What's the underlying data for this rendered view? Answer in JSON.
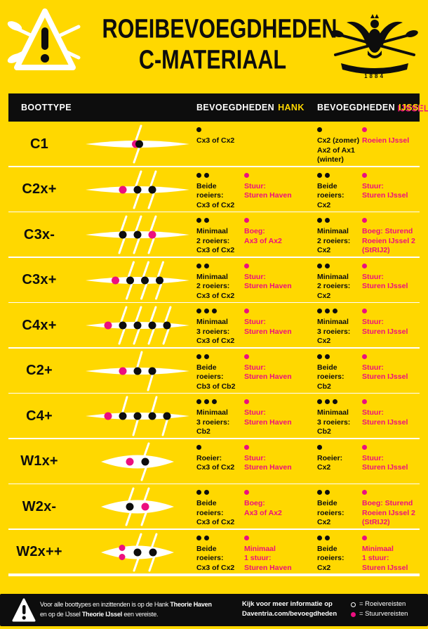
{
  "colors": {
    "yellow": "#FFD800",
    "pink": "#EC0F7F",
    "black": "#0d0d0d",
    "white": "#ffffff"
  },
  "header": {
    "title_line1": "ROEIBEVOEGDHEDEN",
    "title_line2": "C-MATERIAAL",
    "logo_year": "1884"
  },
  "table_header": {
    "boottype": "BOOTTYPE",
    "hank_prefix": "BEVOEGDHEDEN",
    "hank_highlight": "HANK",
    "ijssel_prefix": "BEVOEGDHEDEN",
    "ijssel_highlight": "IJSSEL"
  },
  "rows": [
    {
      "boottype": "C1",
      "boat": {
        "hull": "c",
        "rig": "scull",
        "seats": [
          "dual"
        ],
        "oars_at": [
          0
        ]
      },
      "cells": {
        "hank_roei": {
          "dots": 1,
          "color": "black",
          "lines": [
            "Cx3 of Cx2"
          ]
        },
        "hank_stuur": null,
        "ijssel_roei": {
          "dots": 1,
          "color": "black",
          "lines": [
            "Cx2 (zomer)",
            "Ax2 of Ax1",
            "(winter)"
          ]
        },
        "ijssel_stuur": {
          "dots": 1,
          "color": "pink",
          "lines": [
            "Roeien IJssel"
          ]
        }
      }
    },
    {
      "boottype": "C2x+",
      "boat": {
        "hull": "c",
        "rig": "scull",
        "seats": [
          "pink",
          "black",
          "black"
        ],
        "oars_at": [
          1,
          2
        ]
      },
      "cells": {
        "hank_roei": {
          "dots": 2,
          "color": "black",
          "lines": [
            "Beide",
            "roeiers:",
            "Cx3 of Cx2"
          ]
        },
        "hank_stuur": {
          "dots": 1,
          "color": "pink",
          "lines": [
            "Stuur:",
            "Sturen Haven"
          ]
        },
        "ijssel_roei": {
          "dots": 2,
          "color": "black",
          "lines": [
            "Beide",
            "roeiers:",
            "Cx2"
          ]
        },
        "ijssel_stuur": {
          "dots": 1,
          "color": "pink",
          "lines": [
            "Stuur:",
            "Sturen IJssel"
          ]
        }
      }
    },
    {
      "boottype": "C3x-",
      "boat": {
        "hull": "c",
        "rig": "scull",
        "seats": [
          "black",
          "black",
          "pink"
        ],
        "oars_at": [
          0,
          1,
          2
        ]
      },
      "cells": {
        "hank_roei": {
          "dots": 2,
          "color": "black",
          "lines": [
            "Minimaal",
            "2 roeiers:",
            "Cx3 of Cx2"
          ]
        },
        "hank_stuur": {
          "dots": 1,
          "color": "pink",
          "lines": [
            "Boeg:",
            "Ax3 of Ax2"
          ]
        },
        "ijssel_roei": {
          "dots": 2,
          "color": "black",
          "lines": [
            "Minimaal",
            "2 roeiers:",
            "Cx2"
          ]
        },
        "ijssel_stuur": {
          "dots": 1,
          "color": "pink",
          "lines": [
            "Boeg: Sturend",
            "Roeien IJssel 2",
            "(StRIJ2)"
          ]
        }
      }
    },
    {
      "boottype": "C3x+",
      "boat": {
        "hull": "c",
        "rig": "scull",
        "seats": [
          "pink",
          "black",
          "black",
          "black"
        ],
        "oars_at": [
          1,
          2,
          3
        ]
      },
      "cells": {
        "hank_roei": {
          "dots": 2,
          "color": "black",
          "lines": [
            "Minimaal",
            "2 roeiers:",
            "Cx3 of Cx2"
          ]
        },
        "hank_stuur": {
          "dots": 1,
          "color": "pink",
          "lines": [
            "Stuur:",
            "Sturen Haven"
          ]
        },
        "ijssel_roei": {
          "dots": 2,
          "color": "black",
          "lines": [
            "Minimaal",
            "2 roeiers:",
            "Cx2"
          ]
        },
        "ijssel_stuur": {
          "dots": 1,
          "color": "pink",
          "lines": [
            "Stuur:",
            "Sturen IJssel"
          ]
        }
      }
    },
    {
      "boottype": "C4x+",
      "boat": {
        "hull": "c",
        "rig": "scull",
        "seats": [
          "pink",
          "black",
          "black",
          "black",
          "black"
        ],
        "oars_at": [
          1,
          2,
          3,
          4
        ]
      },
      "cells": {
        "hank_roei": {
          "dots": 3,
          "color": "black",
          "lines": [
            "Minimaal",
            "3 roeiers:",
            "Cx3 of Cx2"
          ]
        },
        "hank_stuur": {
          "dots": 1,
          "color": "pink",
          "lines": [
            "Stuur:",
            "Sturen Haven"
          ]
        },
        "ijssel_roei": {
          "dots": 3,
          "color": "black",
          "lines": [
            "Minimaal",
            "3 roeiers:",
            "Cx2"
          ]
        },
        "ijssel_stuur": {
          "dots": 1,
          "color": "pink",
          "lines": [
            "Stuur:",
            "Sturen IJssel"
          ]
        }
      }
    },
    {
      "boottype": "C2+",
      "boat": {
        "hull": "c",
        "rig": "sweep",
        "seats": [
          "pink",
          "black",
          "black"
        ],
        "oars_at": [
          1,
          2
        ]
      },
      "cells": {
        "hank_roei": {
          "dots": 2,
          "color": "black",
          "lines": [
            "Beide",
            "roeiers:",
            "Cb3 of Cb2"
          ]
        },
        "hank_stuur": {
          "dots": 1,
          "color": "pink",
          "lines": [
            "Stuur:",
            "Sturen Haven"
          ]
        },
        "ijssel_roei": {
          "dots": 2,
          "color": "black",
          "lines": [
            "Beide",
            "roeiers:",
            "Cb2"
          ]
        },
        "ijssel_stuur": {
          "dots": 1,
          "color": "pink",
          "lines": [
            "Stuur:",
            "Sturen IJssel"
          ]
        }
      }
    },
    {
      "boottype": "C4+",
      "boat": {
        "hull": "c",
        "rig": "sweep",
        "seats": [
          "pink",
          "black",
          "black",
          "black",
          "black"
        ],
        "oars_at": [
          1,
          2,
          3,
          4
        ]
      },
      "cells": {
        "hank_roei": {
          "dots": 3,
          "color": "black",
          "lines": [
            "Minimaal",
            "3 roeiers:",
            "Cb2"
          ]
        },
        "hank_stuur": {
          "dots": 1,
          "color": "pink",
          "lines": [
            "Stuur:",
            "Sturen Haven"
          ]
        },
        "ijssel_roei": {
          "dots": 3,
          "color": "black",
          "lines": [
            "Minimaal",
            "3 roeiers:",
            "Cb2"
          ]
        },
        "ijssel_stuur": {
          "dots": 1,
          "color": "pink",
          "lines": [
            "Stuur:",
            "Sturen IJssel"
          ]
        }
      }
    },
    {
      "boottype": "W1x+",
      "boat": {
        "hull": "w",
        "rig": "scull",
        "seats": [
          "pink",
          "black"
        ],
        "oars_at": [
          1
        ]
      },
      "cells": {
        "hank_roei": {
          "dots": 1,
          "color": "black",
          "lines": [
            "Roeier:",
            "Cx3 of Cx2"
          ]
        },
        "hank_stuur": {
          "dots": 1,
          "color": "pink",
          "lines": [
            "Stuur:",
            "Sturen Haven"
          ]
        },
        "ijssel_roei": {
          "dots": 1,
          "color": "black",
          "lines": [
            "Roeier:",
            "Cx2"
          ]
        },
        "ijssel_stuur": {
          "dots": 1,
          "color": "pink",
          "lines": [
            "Stuur:",
            "Sturen IJssel"
          ]
        }
      }
    },
    {
      "boottype": "W2x-",
      "boat": {
        "hull": "w",
        "rig": "scull",
        "seats": [
          "black",
          "pink"
        ],
        "oars_at": [
          0,
          1
        ]
      },
      "cells": {
        "hank_roei": {
          "dots": 2,
          "color": "black",
          "lines": [
            "Beide",
            "roeiers:",
            "Cx3 of Cx2"
          ]
        },
        "hank_stuur": {
          "dots": 1,
          "color": "pink",
          "lines": [
            "Boeg:",
            "Ax3 of Ax2"
          ]
        },
        "ijssel_roei": {
          "dots": 2,
          "color": "black",
          "lines": [
            "Beide",
            "roeiers:",
            "Cx2"
          ]
        },
        "ijssel_stuur": {
          "dots": 1,
          "color": "pink",
          "lines": [
            "Boeg: Sturend",
            "Roeien IJssel 2",
            "(StRIJ2)"
          ]
        }
      }
    },
    {
      "boottype": "W2x++",
      "boat": {
        "hull": "w",
        "rig": "scull",
        "seats": [
          "pinkpair",
          "black",
          "black"
        ],
        "oars_at": [
          1,
          2
        ]
      },
      "cells": {
        "hank_roei": {
          "dots": 2,
          "color": "black",
          "lines": [
            "Beide",
            "roeiers:",
            "Cx3 of Cx2"
          ]
        },
        "hank_stuur": {
          "dots": 1,
          "color": "pink",
          "lines": [
            "Minimaal",
            "1 stuur:",
            "Sturen Haven"
          ]
        },
        "ijssel_roei": {
          "dots": 2,
          "color": "black",
          "lines": [
            "Beide",
            "roeiers:",
            "Cx2"
          ]
        },
        "ijssel_stuur": {
          "dots": 1,
          "color": "pink",
          "lines": [
            "Minimaal",
            "1 stuur:",
            "Sturen IJssel"
          ]
        }
      }
    }
  ],
  "footer": {
    "note_line1": [
      {
        "t": "Voor alle boottypes en inzittenden is op de Hank "
      },
      {
        "t": "Theorie Haven"
      }
    ],
    "note_line2": [
      {
        "t": "en op de IJssel "
      },
      {
        "t": "Theorie IJssel"
      },
      {
        "t": " een vereiste."
      }
    ],
    "info_line1": "Kijk voor meer informatie op",
    "info_line2": "Daventria.com/bevoegdheden",
    "legend": [
      {
        "color": "black",
        "label": "= Roeivereisten"
      },
      {
        "color": "pink",
        "label": "= Stuurvereisten"
      }
    ]
  }
}
